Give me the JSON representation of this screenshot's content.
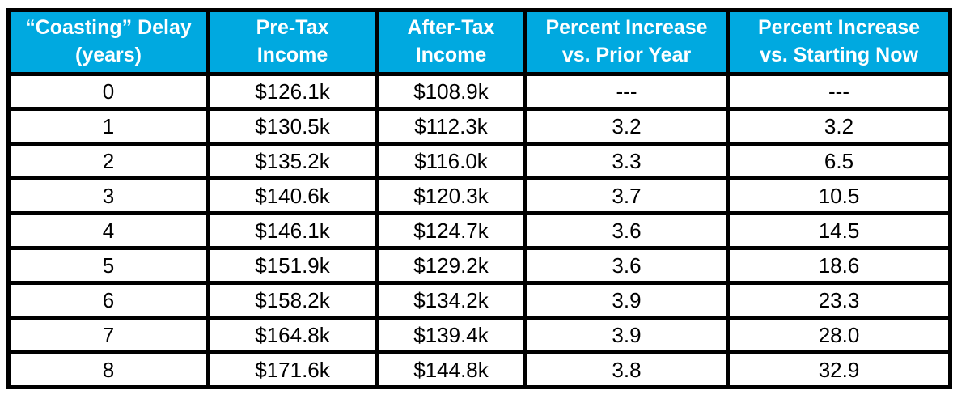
{
  "table": {
    "headers": [
      {
        "line1": "“Coasting” Delay",
        "line2": "(years)"
      },
      {
        "line1": "Pre-Tax",
        "line2": "Income"
      },
      {
        "line1": "After-Tax",
        "line2": "Income"
      },
      {
        "line1": "Percent Increase",
        "line2": "vs. Prior Year"
      },
      {
        "line1": "Percent Increase",
        "line2": "vs. Starting Now"
      }
    ],
    "colors": {
      "header_bg": "#00A9E0",
      "header_text": "#FFFFFF",
      "border": "#000000",
      "cell_bg": "#FFFFFF",
      "cell_text": "#000000"
    }
  },
  "chart_data": {
    "type": "table",
    "title": "",
    "columns": [
      "“Coasting” Delay (years)",
      "Pre-Tax Income",
      "After-Tax Income",
      "Percent Increase vs. Prior Year",
      "Percent Increase vs. Starting Now"
    ],
    "rows": [
      [
        "0",
        "$126.1k",
        "$108.9k",
        "---",
        "---"
      ],
      [
        "1",
        "$130.5k",
        "$112.3k",
        "3.2",
        "3.2"
      ],
      [
        "2",
        "$135.2k",
        "$116.0k",
        "3.3",
        "6.5"
      ],
      [
        "3",
        "$140.6k",
        "$120.3k",
        "3.7",
        "10.5"
      ],
      [
        "4",
        "$146.1k",
        "$124.7k",
        "3.6",
        "14.5"
      ],
      [
        "5",
        "$151.9k",
        "$129.2k",
        "3.6",
        "18.6"
      ],
      [
        "6",
        "$158.2k",
        "$134.2k",
        "3.9",
        "23.3"
      ],
      [
        "7",
        "$164.8k",
        "$139.4k",
        "3.9",
        "28.0"
      ],
      [
        "8",
        "$171.6k",
        "$144.8k",
        "3.8",
        "32.9"
      ]
    ]
  }
}
